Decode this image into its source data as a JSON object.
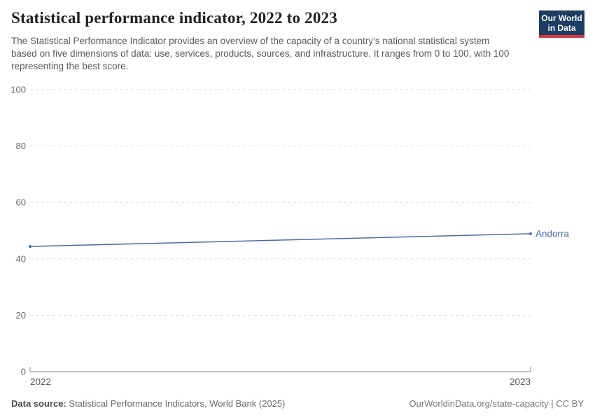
{
  "header": {
    "title": "Statistical performance indicator, 2022 to 2023",
    "subtitle": "The Statistical Performance Indicator provides an overview of the capacity of a country’s national statistical system based on five dimensions of data: use, services, products, sources, and infrastructure. It ranges from 0 to 100, with 100 representing the best score.",
    "logo": {
      "line1": "Our World",
      "line2": "in Data",
      "bg_color": "#1d3d63",
      "accent_color": "#d4353f"
    }
  },
  "chart_data": {
    "type": "line",
    "title": "Statistical performance indicator, 2022 to 2023",
    "x": [
      "2022",
      "2023"
    ],
    "series": [
      {
        "name": "Andorra",
        "values": [
          44.4,
          48.9
        ],
        "color": "#4a6bab"
      }
    ],
    "xlabel": "",
    "ylabel": "",
    "ylim": [
      0,
      100
    ],
    "yticks": [
      0,
      20,
      40,
      60,
      80,
      100
    ],
    "xticks": [
      "2022",
      "2023"
    ],
    "grid": "horizontal-dashed",
    "legend_position": "end-of-line-label"
  },
  "footer": {
    "source_label": "Data source:",
    "source_text": "Statistical Performance Indicators, World Bank (2025)",
    "right_text": "OurWorldinData.org/state-capacity | CC BY"
  },
  "colors": {
    "series_blue": "#4a6bab",
    "grid": "#dedede",
    "axis": "#8a8a8a",
    "y_tick_label": "#666666",
    "x_tick_label": "#555555",
    "title_text": "#222222",
    "muted_text": "#5a5a5a"
  }
}
